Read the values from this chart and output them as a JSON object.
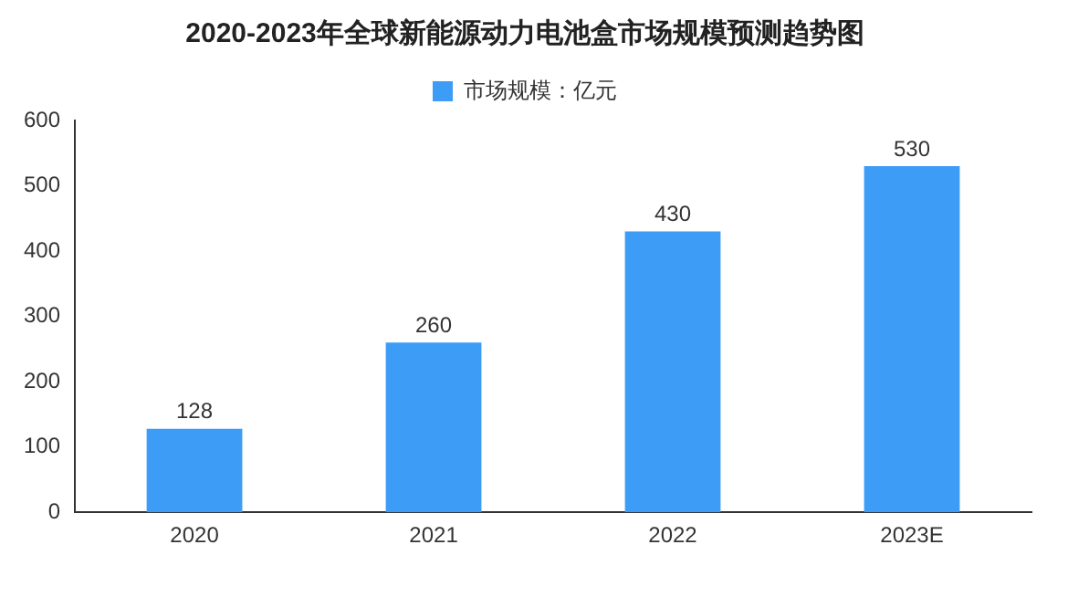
{
  "chart_data": {
    "type": "bar",
    "title": "2020-2023年全球新能源动力电池盒市场规模预测趋势图",
    "categories": [
      "2020",
      "2021",
      "2022",
      "2023E"
    ],
    "series": [
      {
        "name": "市场规模：亿元",
        "color": "#3d9cf5",
        "values": [
          128,
          260,
          430,
          530
        ]
      }
    ],
    "ylim": [
      0,
      600
    ],
    "yticks": [
      0,
      100,
      200,
      300,
      400,
      500,
      600
    ],
    "grid": false,
    "legend": "top",
    "data_labels": true
  }
}
